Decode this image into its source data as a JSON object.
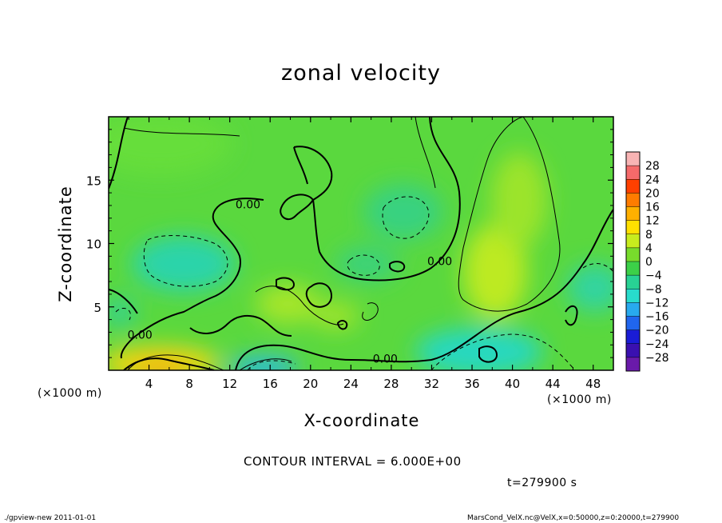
{
  "chart_data": {
    "type": "heatmap",
    "title": "zonal velocity",
    "xlabel": "X-coordinate",
    "ylabel": "Z-coordinate",
    "x_unit_label": "(×1000 m)",
    "y_unit_label": "(×1000 m)",
    "xlim": [
      0,
      50
    ],
    "ylim": [
      0,
      20
    ],
    "x_ticks": [
      4,
      8,
      12,
      16,
      20,
      24,
      28,
      32,
      36,
      40,
      44,
      48
    ],
    "y_ticks": [
      5,
      10,
      15
    ],
    "colorbar": {
      "levels": [
        "28",
        "24",
        "20",
        "16",
        "12",
        "8",
        "4",
        "0",
        "−4",
        "−8",
        "−12",
        "−16",
        "−20",
        "−24",
        "−28"
      ],
      "colors": [
        "#f8b4b4",
        "#f56a6a",
        "#ff4000",
        "#ff7c00",
        "#ffb000",
        "#ffe000",
        "#c8ec1e",
        "#78dc2c",
        "#3cd048",
        "#28d294",
        "#28dccc",
        "#28aaee",
        "#2066ee",
        "#1a1cd6",
        "#3a10b0",
        "#6a1aaa"
      ]
    },
    "contour_labels": [
      {
        "text": "0.00",
        "x": 13.8,
        "z": 13.1
      },
      {
        "text": "0.00",
        "x": 3.1,
        "z": 2.8
      },
      {
        "text": "0.00",
        "x": 27.4,
        "z": 0.9
      },
      {
        "text": "0.00",
        "x": 32.8,
        "z": 8.6
      }
    ],
    "contour_interval": "CONTOUR INTERVAL = 6.000E+00",
    "time": "t=279900 s"
  },
  "footer": {
    "left": "./gpview-new   2011-01-01",
    "right": "MarsCond_VelX.nc@VelX,x=0:50000,z=0:20000,t=279900"
  }
}
